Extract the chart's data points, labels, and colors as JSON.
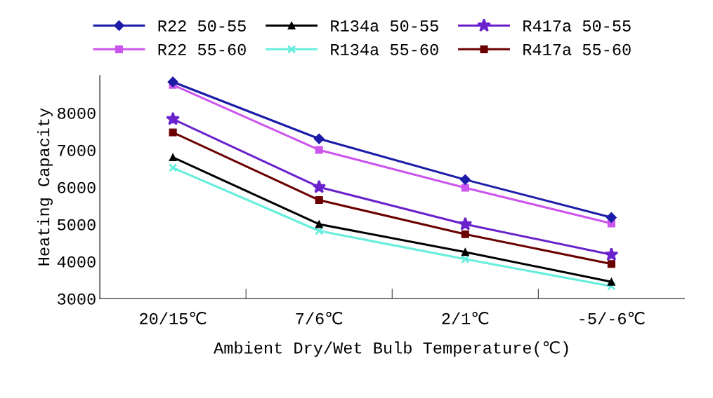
{
  "chart_data": {
    "type": "line",
    "xlabel": "Ambient Dry/Wet Bulb Temperature(℃)",
    "ylabel": "Heating Capacity",
    "categories": [
      "20/15℃",
      "7/6℃",
      "2/1℃",
      "-5/-6℃"
    ],
    "ylim": [
      3000,
      9000
    ],
    "yticks": [
      3000,
      4000,
      5000,
      6000,
      7000,
      8000
    ],
    "grid": false,
    "legend": "top",
    "line_style": "solid",
    "series": [
      {
        "name": "R22 50-55",
        "color": "#1c1ca8",
        "marker": "diamond",
        "values": [
          8830,
          7300,
          6200,
          5180
        ]
      },
      {
        "name": "R22 55-60",
        "color": "#cc55ee",
        "marker": "square",
        "values": [
          8750,
          7000,
          5980,
          5020
        ]
      },
      {
        "name": "R134a 50-55",
        "color": "#000000",
        "marker": "triangle",
        "values": [
          6800,
          5000,
          4250,
          3450
        ]
      },
      {
        "name": "R134a 55-60",
        "color": "#66eedd",
        "marker": "cross",
        "values": [
          6520,
          4820,
          4060,
          3330
        ]
      },
      {
        "name": "R417a 50-55",
        "color": "#6a22cc",
        "marker": "star",
        "values": [
          7830,
          6000,
          5000,
          4180
        ]
      },
      {
        "name": "R417a 55-60",
        "color": "#6b0000",
        "marker": "square",
        "values": [
          7470,
          5650,
          4730,
          3930
        ]
      }
    ]
  }
}
